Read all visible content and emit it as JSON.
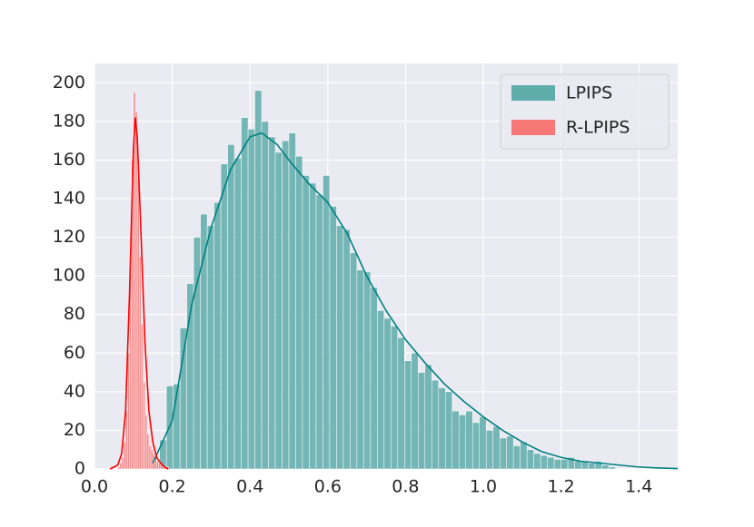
{
  "chart_data": {
    "type": "histogram",
    "xlim": [
      0,
      1.5
    ],
    "ylim": [
      0,
      210
    ],
    "xticks": [
      {
        "value": 0,
        "label": "0.0"
      },
      0.2,
      0.4,
      0.6,
      0.8,
      {
        "value": 1,
        "label": "1.0"
      },
      1.2,
      1.4
    ],
    "yticks": [
      0,
      20,
      40,
      60,
      80,
      100,
      120,
      140,
      160,
      180,
      200
    ],
    "grid": true,
    "legend": "upper right",
    "series": [
      {
        "name": "LPIPS",
        "color": "#5fadaa",
        "line_color": "#008080",
        "bins": [
          0.15,
          0.1675,
          0.185,
          0.2025,
          0.22,
          0.2375,
          0.255,
          0.2725,
          0.29,
          0.3075,
          0.325,
          0.3425,
          0.36,
          0.3775,
          0.395,
          0.4125,
          0.43,
          0.4475,
          0.465,
          0.4825,
          0.5,
          0.5175,
          0.535,
          0.5525,
          0.57,
          0.5875,
          0.605,
          0.6225,
          0.64,
          0.6575,
          0.675,
          0.6925,
          0.71,
          0.7275,
          0.745,
          0.7625,
          0.78,
          0.7975,
          0.815,
          0.8325,
          0.85,
          0.8675,
          0.885,
          0.9025,
          0.92,
          0.9375,
          0.955,
          0.9725,
          0.99,
          1.0075,
          1.025,
          1.0425,
          1.06,
          1.0775,
          1.095,
          1.1125,
          1.13,
          1.1475,
          1.165,
          1.1825,
          1.2,
          1.2175,
          1.235,
          1.2525,
          1.27,
          1.2875,
          1.305,
          1.3225,
          1.34
        ],
        "values": [
          3,
          15,
          43,
          44,
          73,
          96,
          120,
          132,
          126,
          138,
          158,
          168,
          161,
          182,
          176,
          196,
          180,
          172,
          164,
          170,
          174,
          162,
          152,
          148,
          142,
          152,
          136,
          126,
          124,
          112,
          103,
          102,
          94,
          82,
          78,
          74,
          68,
          56,
          60,
          50,
          54,
          46,
          42,
          40,
          30,
          28,
          30,
          24,
          27,
          20,
          22,
          16,
          17,
          12,
          14,
          10,
          8,
          7,
          6,
          5,
          5,
          6,
          4,
          4,
          3,
          4,
          2,
          1
        ],
        "kde_x": [
          0.15,
          0.2,
          0.25,
          0.3,
          0.35,
          0.4,
          0.43,
          0.47,
          0.5,
          0.55,
          0.6,
          0.65,
          0.7,
          0.75,
          0.8,
          0.85,
          0.9,
          0.95,
          1.0,
          1.05,
          1.1,
          1.15,
          1.2,
          1.25,
          1.3,
          1.35,
          1.4,
          1.45,
          1.5
        ],
        "kde_y": [
          3,
          25,
          85,
          125,
          155,
          172,
          174,
          168,
          160,
          148,
          138,
          122,
          100,
          82,
          67,
          55,
          44,
          35,
          27,
          20,
          14,
          9,
          6,
          4,
          3,
          2,
          1,
          0.5,
          0.2
        ]
      },
      {
        "name": "R-LPIPS",
        "color": "#f87878",
        "line_color": "#ff0000",
        "bins": [
          0.06,
          0.065,
          0.07,
          0.075,
          0.08,
          0.085,
          0.09,
          0.095,
          0.1,
          0.105,
          0.11,
          0.115,
          0.12,
          0.125,
          0.13,
          0.135,
          0.14,
          0.145,
          0.15,
          0.155,
          0.16,
          0.165,
          0.17,
          0.175,
          0.18,
          0.185,
          0.19
        ],
        "values": [
          1,
          3,
          6,
          14,
          30,
          60,
          110,
          160,
          195,
          185,
          150,
          110,
          75,
          45,
          28,
          18,
          12,
          10,
          8,
          6,
          4,
          3,
          2,
          1,
          1,
          1
        ],
        "kde_x": [
          0.04,
          0.06,
          0.07,
          0.08,
          0.09,
          0.1,
          0.105,
          0.11,
          0.12,
          0.13,
          0.14,
          0.15,
          0.16,
          0.17,
          0.18,
          0.19
        ],
        "kde_y": [
          0,
          2,
          8,
          30,
          90,
          165,
          182,
          172,
          120,
          65,
          30,
          14,
          6,
          3,
          1,
          0
        ]
      }
    ]
  }
}
